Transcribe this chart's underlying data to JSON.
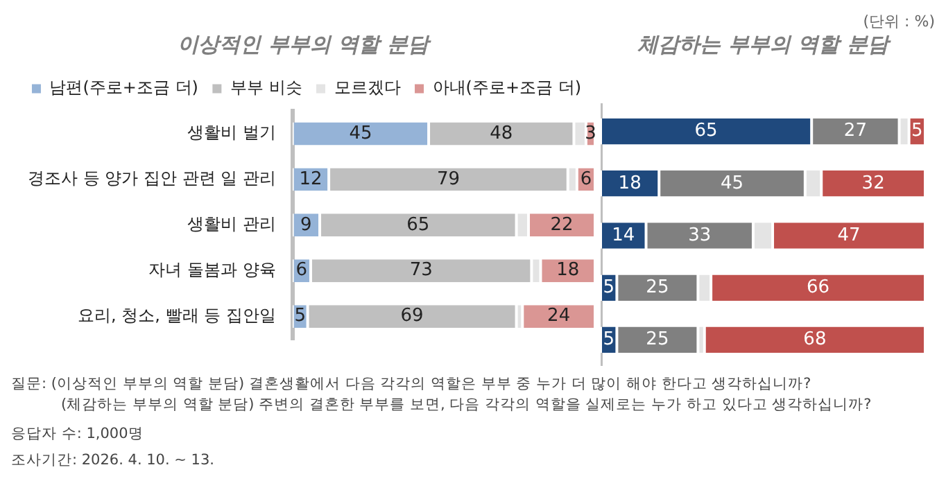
{
  "chart_data": [
    {
      "type": "bar",
      "orientation": "horizontal",
      "stacked": true,
      "title": "이상적인 부부의 역할 분담",
      "categories": [
        "생활비 벌기",
        "경조사 등 양가 집안 관련 일 관리",
        "생활비 관리",
        "자녀 돌봄과 양육",
        "요리, 청소, 빨래 등 집안일"
      ],
      "xlim": [
        0,
        100
      ],
      "tick_labels": "y",
      "grid": false,
      "legend": "top",
      "series": [
        {
          "name": "남편(주로+조금 더)",
          "color": "#95b3d7",
          "values": [
            45,
            12,
            9,
            6,
            5
          ],
          "value_labels": [
            "45",
            "12",
            "9",
            "6",
            "5"
          ]
        },
        {
          "name": "부부 비슷",
          "color": "#bfbfbf",
          "values": [
            48,
            79,
            65,
            73,
            69
          ],
          "value_labels": [
            "48",
            "79",
            "65",
            "73",
            "69"
          ]
        },
        {
          "name": "모르겠다",
          "color": "#e4e4e4",
          "values": [
            4,
            3,
            4,
            3,
            2
          ],
          "value_labels": [
            null,
            null,
            null,
            null,
            null
          ]
        },
        {
          "name": "아내(주로+조금 더)",
          "color": "#da9694",
          "values": [
            3,
            6,
            22,
            18,
            24
          ],
          "value_labels": [
            "3",
            "6",
            "22",
            "18",
            "24"
          ]
        }
      ],
      "annotations": [
        "(단위 : %)",
        "질문:  (이상적인 부부의 역할 분담) 결혼생활에서 다음 각각의 역할은 부부 중 누가 더 많이 해야 한다고 생각하십니까?",
        "(체감하는 부부의 역할 분담) 주변의 결혼한 부부를 보면, 다음 각각의 역할을 실제로는 누가 하고 있다고 생각하십니까?",
        "응답자 수: 1,000명",
        "조사기간: 2026. 4. 10. ~ 13."
      ]
    },
    {
      "type": "bar",
      "orientation": "horizontal",
      "stacked": true,
      "title": "체감하는 부부의 역할 분담",
      "categories": [
        null,
        null,
        null,
        null,
        null
      ],
      "xlim": [
        0,
        100
      ],
      "tick_labels": false,
      "grid": false,
      "legend": false,
      "series": [
        {
          "color": "#1f497d",
          "values": [
            65,
            18,
            14,
            5,
            5
          ],
          "value_labels": [
            "65",
            "18",
            "14",
            "5",
            "5"
          ]
        },
        {
          "color": "#808080",
          "values": [
            27,
            45,
            33,
            25,
            25
          ],
          "value_labels": [
            "27",
            "45",
            "33",
            "25",
            "25"
          ]
        },
        {
          "color": "#e4e4e4",
          "values": [
            3,
            5,
            6,
            4,
            2
          ],
          "value_labels": [
            null,
            null,
            null,
            null,
            null
          ]
        },
        {
          "color": "#c0504d",
          "values": [
            5,
            32,
            47,
            66,
            68
          ],
          "value_labels": [
            "5",
            "32",
            "47",
            "66",
            "68"
          ]
        }
      ]
    }
  ]
}
